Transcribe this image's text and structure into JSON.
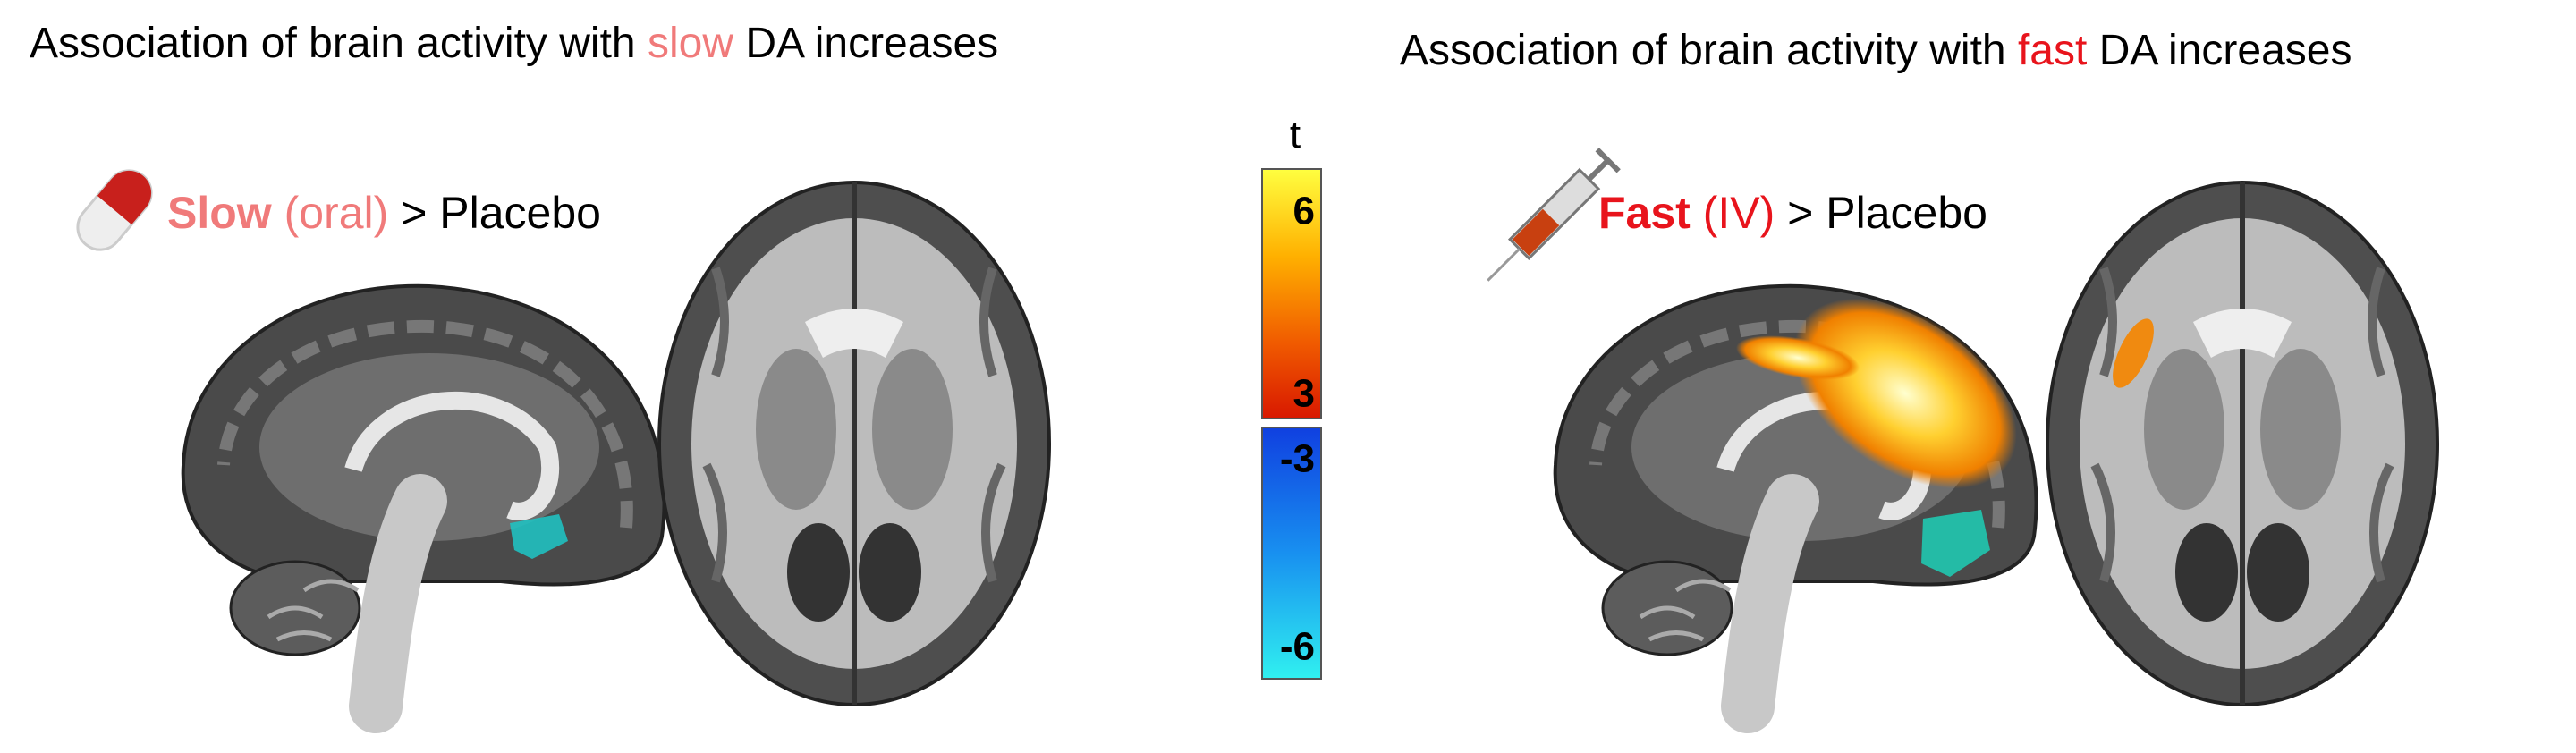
{
  "panels": [
    {
      "title": {
        "prefix": "Association of brain activity with",
        "highlight": "slow",
        "suffix": "DA increases"
      },
      "label": {
        "name": "Slow",
        "route": "(oral)",
        "comparison": "> Placebo"
      }
    },
    {
      "title": {
        "prefix": "Association of brain activity with",
        "highlight": "fast",
        "suffix": "DA increases"
      },
      "label": {
        "name": "Fast",
        "route": "(IV)",
        "comparison": "> Placebo"
      }
    }
  ],
  "colorbar": {
    "title": "t",
    "ticks": [
      6,
      3,
      -3,
      -6
    ]
  }
}
